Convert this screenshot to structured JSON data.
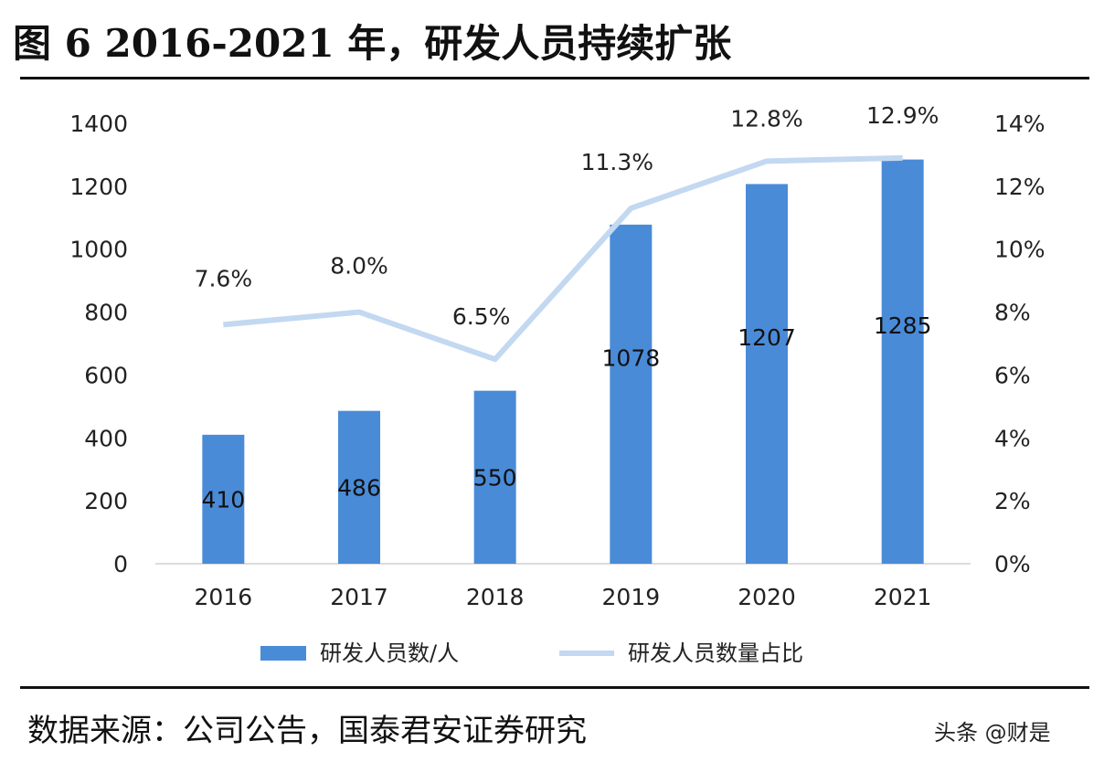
{
  "title": "图 6 2016-2021 年，研发人员持续扩张",
  "source": "数据来源：公司公告，国泰君安证券研究",
  "watermark": "头条 @财是",
  "chart_data": {
    "type": "bar+line",
    "categories": [
      "2016",
      "2017",
      "2018",
      "2019",
      "2020",
      "2021"
    ],
    "series": [
      {
        "name": "研发人员数/人",
        "type": "bar",
        "axis": "left",
        "values": [
          410,
          486,
          550,
          1078,
          1207,
          1285
        ],
        "labels": [
          "410",
          "486",
          "550",
          "1078",
          "1207",
          "1285"
        ],
        "color": "#4a8bd8"
      },
      {
        "name": "研发人员数量占比",
        "type": "line",
        "axis": "right",
        "values": [
          7.6,
          8.0,
          6.5,
          11.3,
          12.8,
          12.9
        ],
        "labels": [
          "7.6%",
          "8.0%",
          "6.5%",
          "11.3%",
          "12.8%",
          "12.9%"
        ],
        "color": "#c3d8f1"
      }
    ],
    "y_left": {
      "range": [
        0,
        1400
      ],
      "ticks": [
        "0",
        "200",
        "400",
        "600",
        "800",
        "1000",
        "1200",
        "1400"
      ]
    },
    "y_right": {
      "range": [
        0,
        14
      ],
      "ticks": [
        "0%",
        "2%",
        "4%",
        "6%",
        "8%",
        "10%",
        "12%",
        "14%"
      ]
    },
    "grid": false,
    "legend": "bottom"
  }
}
